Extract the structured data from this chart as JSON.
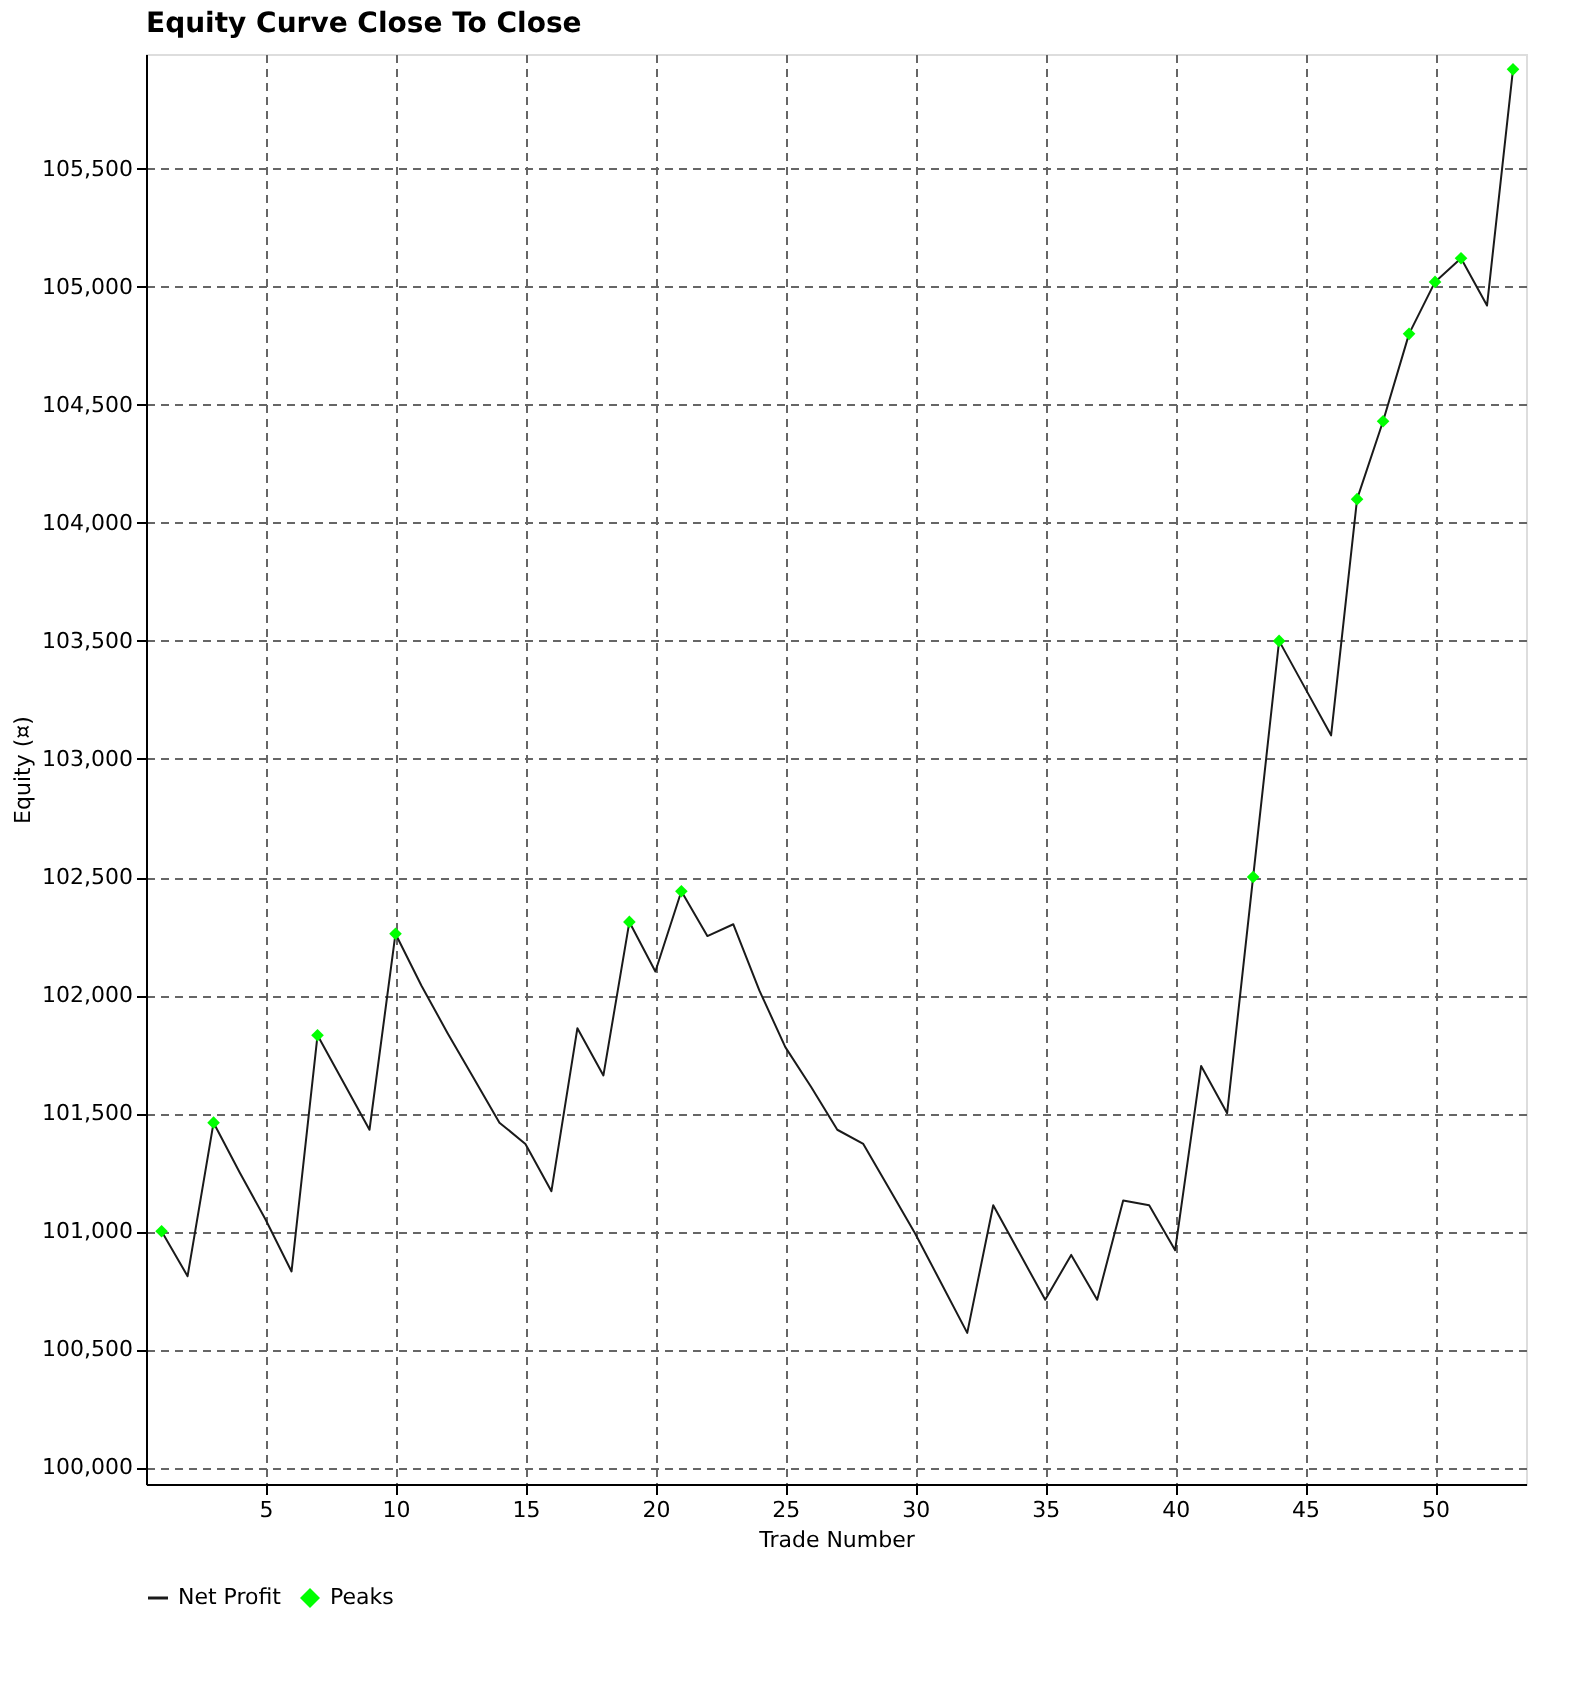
{
  "chart_data": {
    "type": "line",
    "title": "Equity Curve Close To Close",
    "xlabel": "Trade Number",
    "ylabel": "Equity (¤)",
    "x": [
      1,
      2,
      3,
      4,
      5,
      6,
      7,
      8,
      9,
      10,
      11,
      12,
      13,
      14,
      15,
      16,
      17,
      18,
      19,
      20,
      21,
      22,
      23,
      24,
      25,
      26,
      27,
      28,
      29,
      30,
      31,
      32,
      33,
      34,
      35,
      36,
      37,
      38,
      39,
      40,
      41,
      42,
      43,
      44,
      45,
      46,
      47,
      48,
      49,
      50,
      51,
      52,
      53
    ],
    "series": [
      {
        "name": "Net Profit",
        "type": "line",
        "color": "#1a1a1a",
        "marker": "none",
        "values": [
          101000,
          100810,
          101460,
          101250,
          101050,
          100830,
          101830,
          101630,
          101430,
          102260,
          102040,
          101840,
          101650,
          101460,
          101370,
          101170,
          101860,
          101660,
          102310,
          102100,
          102440,
          102250,
          102300,
          102020,
          101780,
          101610,
          101430,
          101370,
          101180,
          100990,
          100780,
          100570,
          101110,
          100910,
          100710,
          100900,
          100710,
          101130,
          101110,
          100920,
          101700,
          101500,
          102500,
          103500,
          103300,
          103100,
          104100,
          104430,
          104800,
          105020,
          105120,
          104920,
          105920
        ]
      },
      {
        "name": "Peaks",
        "type": "scatter",
        "color": "#00ff00",
        "marker": "diamond",
        "x": [
          1,
          3,
          7,
          10,
          19,
          21,
          43,
          44,
          47,
          48,
          49,
          50,
          51,
          53
        ],
        "values": [
          101000,
          101460,
          101830,
          102260,
          102310,
          102440,
          102500,
          103500,
          104100,
          104430,
          104800,
          105020,
          105120,
          105920
        ]
      }
    ],
    "xlim": [
      0.4,
      53.5
    ],
    "xticks": [
      5,
      10,
      15,
      20,
      25,
      30,
      35,
      40,
      45,
      50
    ],
    "ylim": [
      99930,
      105985
    ],
    "yticks": [
      {
        "value": 100000,
        "label": "100,000"
      },
      {
        "value": 100500,
        "label": "100,500"
      },
      {
        "value": 101000,
        "label": "101,000"
      },
      {
        "value": 101500,
        "label": "101,500"
      },
      {
        "value": 102000,
        "label": "102,000"
      },
      {
        "value": 102500,
        "label": "102,500"
      },
      {
        "value": 103000,
        "label": "103,000"
      },
      {
        "value": 103500,
        "label": "103,500"
      },
      {
        "value": 104000,
        "label": "104,000"
      },
      {
        "value": 104500,
        "label": "104,500"
      },
      {
        "value": 105000,
        "label": "105,000"
      },
      {
        "value": 105500,
        "label": "105,500"
      }
    ],
    "grid": true,
    "legend": "bottom"
  }
}
